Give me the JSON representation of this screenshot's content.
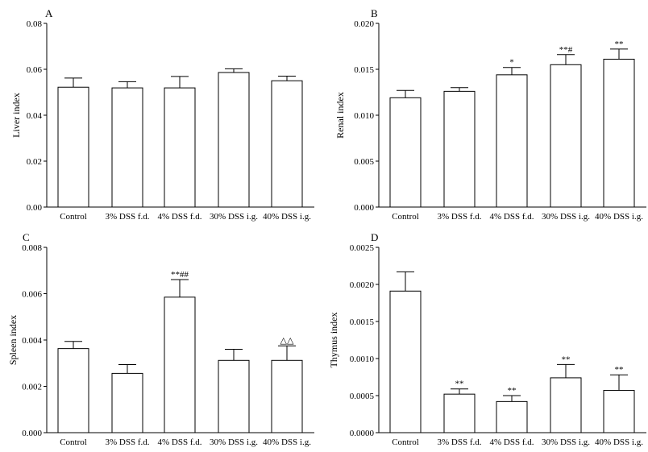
{
  "chart_data": [
    {
      "type": "bar",
      "panel": "A",
      "ylabel": "Liver index",
      "categories": [
        "Control",
        "3% DSS f.d.",
        "4% DSS f.d.",
        "30% DSS i.g.",
        "40% DSS i.g."
      ],
      "values": [
        0.0522,
        0.0519,
        0.0519,
        0.0586,
        0.055
      ],
      "errors": [
        0.004,
        0.0027,
        0.005,
        0.0016,
        0.002
      ],
      "annotations": [
        "",
        "",
        "",
        "",
        ""
      ],
      "ylim": [
        0,
        0.08
      ],
      "yticks": [
        "0.00",
        "0.02",
        "0.04",
        "0.06",
        "0.08"
      ],
      "ytick_values": [
        0,
        0.02,
        0.04,
        0.06,
        0.08
      ]
    },
    {
      "type": "bar",
      "panel": "B",
      "ylabel": "Renal index",
      "categories": [
        "Control",
        "3% DSS f.d.",
        "4% DSS f.d.",
        "30% DSS i.g.",
        "40% DSS i.g."
      ],
      "values": [
        0.0119,
        0.0126,
        0.0144,
        0.0155,
        0.0161
      ],
      "errors": [
        0.0008,
        0.0004,
        0.0008,
        0.0011,
        0.0011
      ],
      "annotations": [
        "",
        "",
        "*",
        "**#",
        "**"
      ],
      "ylim": [
        0,
        0.02
      ],
      "yticks": [
        "0.000",
        "0.005",
        "0.010",
        "0.015",
        "0.020"
      ],
      "ytick_values": [
        0,
        0.005,
        0.01,
        0.015,
        0.02
      ]
    },
    {
      "type": "bar",
      "panel": "C",
      "ylabel": "Spleen index",
      "categories": [
        "Control",
        "3% DSS f.d.",
        "4% DSS f.d.",
        "30% DSS i.g.",
        "40% DSS i.g."
      ],
      "values": [
        0.00363,
        0.00256,
        0.00585,
        0.00312,
        0.00312
      ],
      "errors": [
        0.00031,
        0.00038,
        0.00076,
        0.00048,
        0.00063
      ],
      "annotations": [
        "",
        "",
        "**##",
        "",
        "△△"
      ],
      "ylim": [
        0,
        0.008
      ],
      "yticks": [
        "0.000",
        "0.002",
        "0.004",
        "0.006",
        "0.008"
      ],
      "ytick_values": [
        0,
        0.002,
        0.004,
        0.006,
        0.008
      ]
    },
    {
      "type": "bar",
      "panel": "D",
      "ylabel": "Thymus index",
      "categories": [
        "Control",
        "3% DSS f.d.",
        "4% DSS f.d.",
        "30% DSS i.g.",
        "40% DSS i.g."
      ],
      "values": [
        0.00191,
        0.00052,
        0.00042,
        0.00074,
        0.00057
      ],
      "errors": [
        0.00026,
        7e-05,
        8e-05,
        0.00018,
        0.00021
      ],
      "annotations": [
        "",
        "**",
        "**",
        "**",
        "**"
      ],
      "ylim": [
        0,
        0.0025
      ],
      "yticks": [
        "0.0000",
        "0.0005",
        "0.0010",
        "0.0015",
        "0.0020",
        "0.0025"
      ],
      "ytick_values": [
        0,
        0.0005,
        0.001,
        0.0015,
        0.002,
        0.0025
      ]
    }
  ]
}
